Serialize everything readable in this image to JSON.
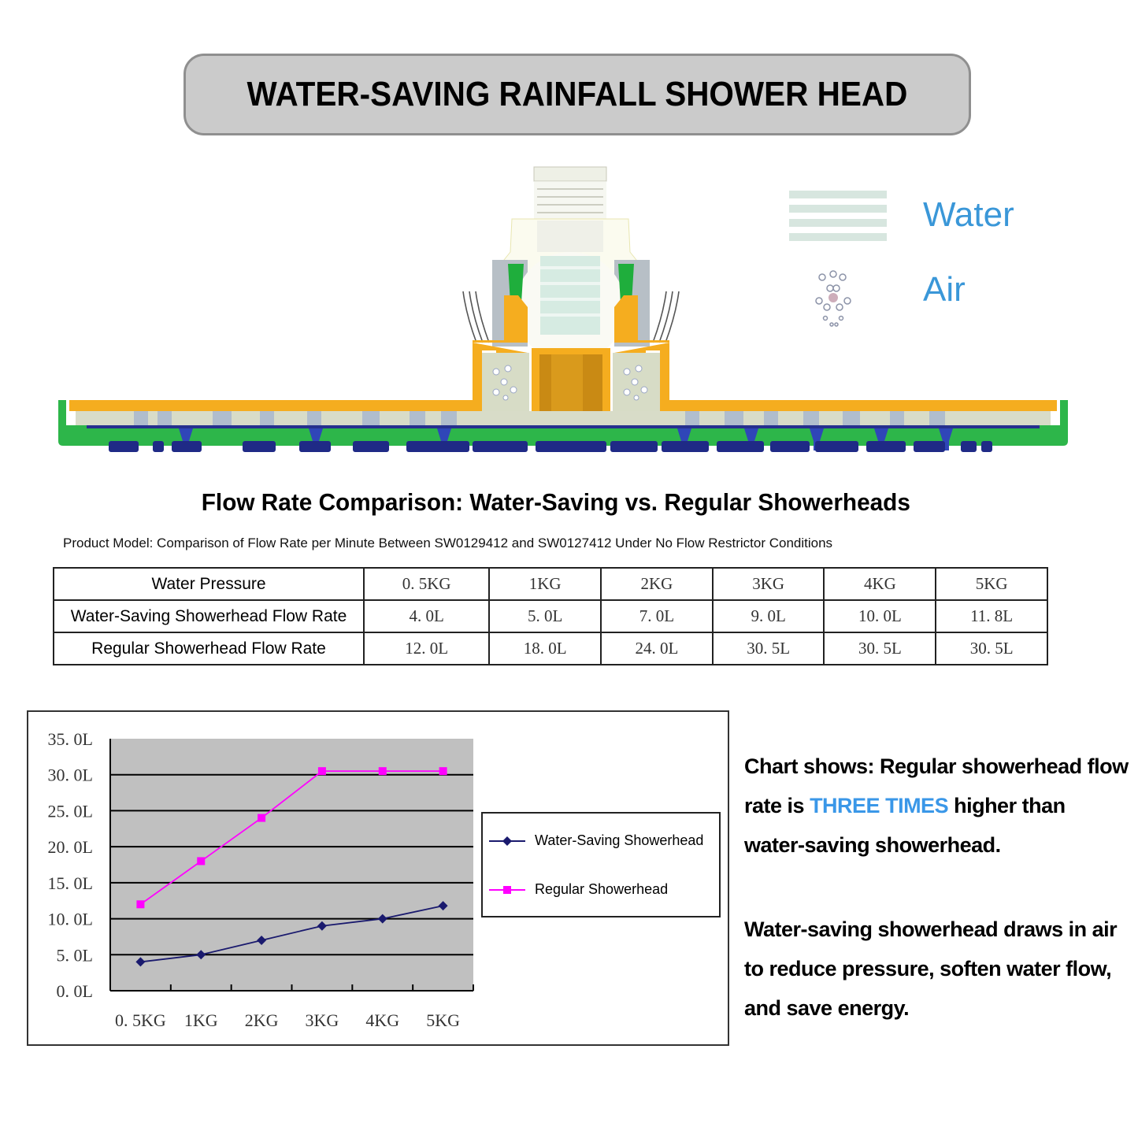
{
  "header": {
    "title": "WATER-SAVING RAINFALL SHOWER HEAD"
  },
  "diagram": {
    "description": "Cross-section of rainfall shower head showing water and air mixing",
    "legend": [
      {
        "icon": "water-stripes-icon",
        "label": "Water"
      },
      {
        "icon": "air-bubbles-icon",
        "label": "Air"
      }
    ],
    "colors": {
      "legend_text": "#3a97d8",
      "shell_green": "#2db64a",
      "inner_orange": "#f5ad1f",
      "nozzle_blue": "#26308e"
    }
  },
  "comparison": {
    "title": "Flow Rate Comparison: Water-Saving vs. Regular Showerheads",
    "subtitle": "Product Model: Comparison of Flow Rate per Minute Between SW0129412 and SW0127412 Under No Flow Restrictor Conditions",
    "table": {
      "header_label": "Water Pressure",
      "columns": [
        "0. 5KG",
        "1KG",
        "2KG",
        "3KG",
        "4KG",
        "5KG"
      ],
      "rows": [
        {
          "label": "Water-Saving Showerhead Flow Rate",
          "values": [
            "4. 0L",
            "5. 0L",
            "7. 0L",
            "9. 0L",
            "10. 0L",
            "11. 8L"
          ]
        },
        {
          "label": "Regular Showerhead Flow Rate",
          "values": [
            "12. 0L",
            "18. 0L",
            "24. 0L",
            "30. 5L",
            "30. 5L",
            "30. 5L"
          ]
        }
      ]
    }
  },
  "chart_data": {
    "type": "line",
    "title": "",
    "xlabel": "",
    "ylabel": "",
    "categories": [
      "0. 5KG",
      "1KG",
      "2KG",
      "3KG",
      "4KG",
      "5KG"
    ],
    "series": [
      {
        "name": "Water-Saving Showerhead",
        "values": [
          4.0,
          5.0,
          7.0,
          9.0,
          10.0,
          11.8
        ],
        "color": "#1a1a6e",
        "marker": "diamond"
      },
      {
        "name": "Regular Showerhead",
        "values": [
          12.0,
          18.0,
          24.0,
          30.5,
          30.5,
          30.5
        ],
        "color": "#ff00ff",
        "marker": "square"
      }
    ],
    "y_ticks": [
      "0. 0L",
      "5. 0L",
      "10. 0L",
      "15. 0L",
      "20. 0L",
      "25. 0L",
      "30. 0L",
      "35. 0L"
    ],
    "ylim": [
      0,
      35
    ],
    "grid": true,
    "plot_background": "#c0c0c0",
    "legend_position": "right"
  },
  "notes": {
    "p1_pre": "Chart shows: Regular showerhead flow rate is ",
    "p1_highlight": "THREE TIMES",
    "p1_post": " higher than water-saving showerhead.",
    "p2": "Water-saving showerhead draws in air to reduce pressure, soften water flow, and save energy.",
    "highlight_color": "#3a97e8"
  }
}
